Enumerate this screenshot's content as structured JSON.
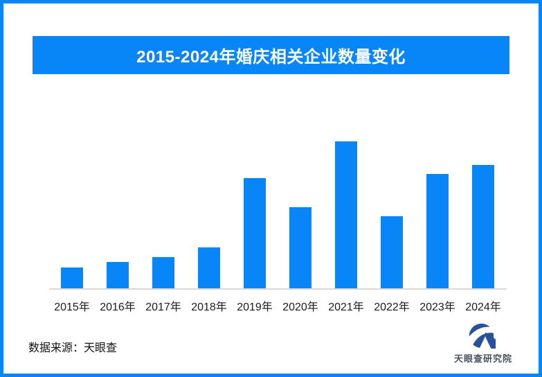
{
  "frame": {
    "border_color": "#0886F8",
    "background": "#FFFFFF"
  },
  "title_banner": {
    "text": "2015-2024年婚庆相关企业数量变化",
    "background": "#0886F8",
    "text_color": "#FFFFFF"
  },
  "chart_data": {
    "type": "bar",
    "title": "2015-2024年婚庆相关企业数量变化",
    "categories": [
      "2015年",
      "2016年",
      "2017年",
      "2018年",
      "2019年",
      "2020年",
      "2021年",
      "2022年",
      "2023年",
      "2024年"
    ],
    "values": [
      14,
      18,
      21,
      28,
      75,
      55,
      100,
      49,
      78,
      84
    ],
    "value_scale": "relative index estimated from bar heights, tallest bar (2021) = 100; chart shows no y-axis or value labels",
    "xlabel": "",
    "ylabel": "",
    "ylim": [
      0,
      105
    ],
    "grid": false,
    "legend": false,
    "bar_color": "#0886F8",
    "axis_line_color": "#D8D8DA",
    "tick_label_color": "#1B1B1B"
  },
  "footer": {
    "source_label": "数据来源：天眼查",
    "text_color": "#111111"
  },
  "logo": {
    "text": "天眼查研究院",
    "icon": "tianyancha-eye-icon",
    "icon_color": "#27509E",
    "text_color": "#4A5360"
  }
}
